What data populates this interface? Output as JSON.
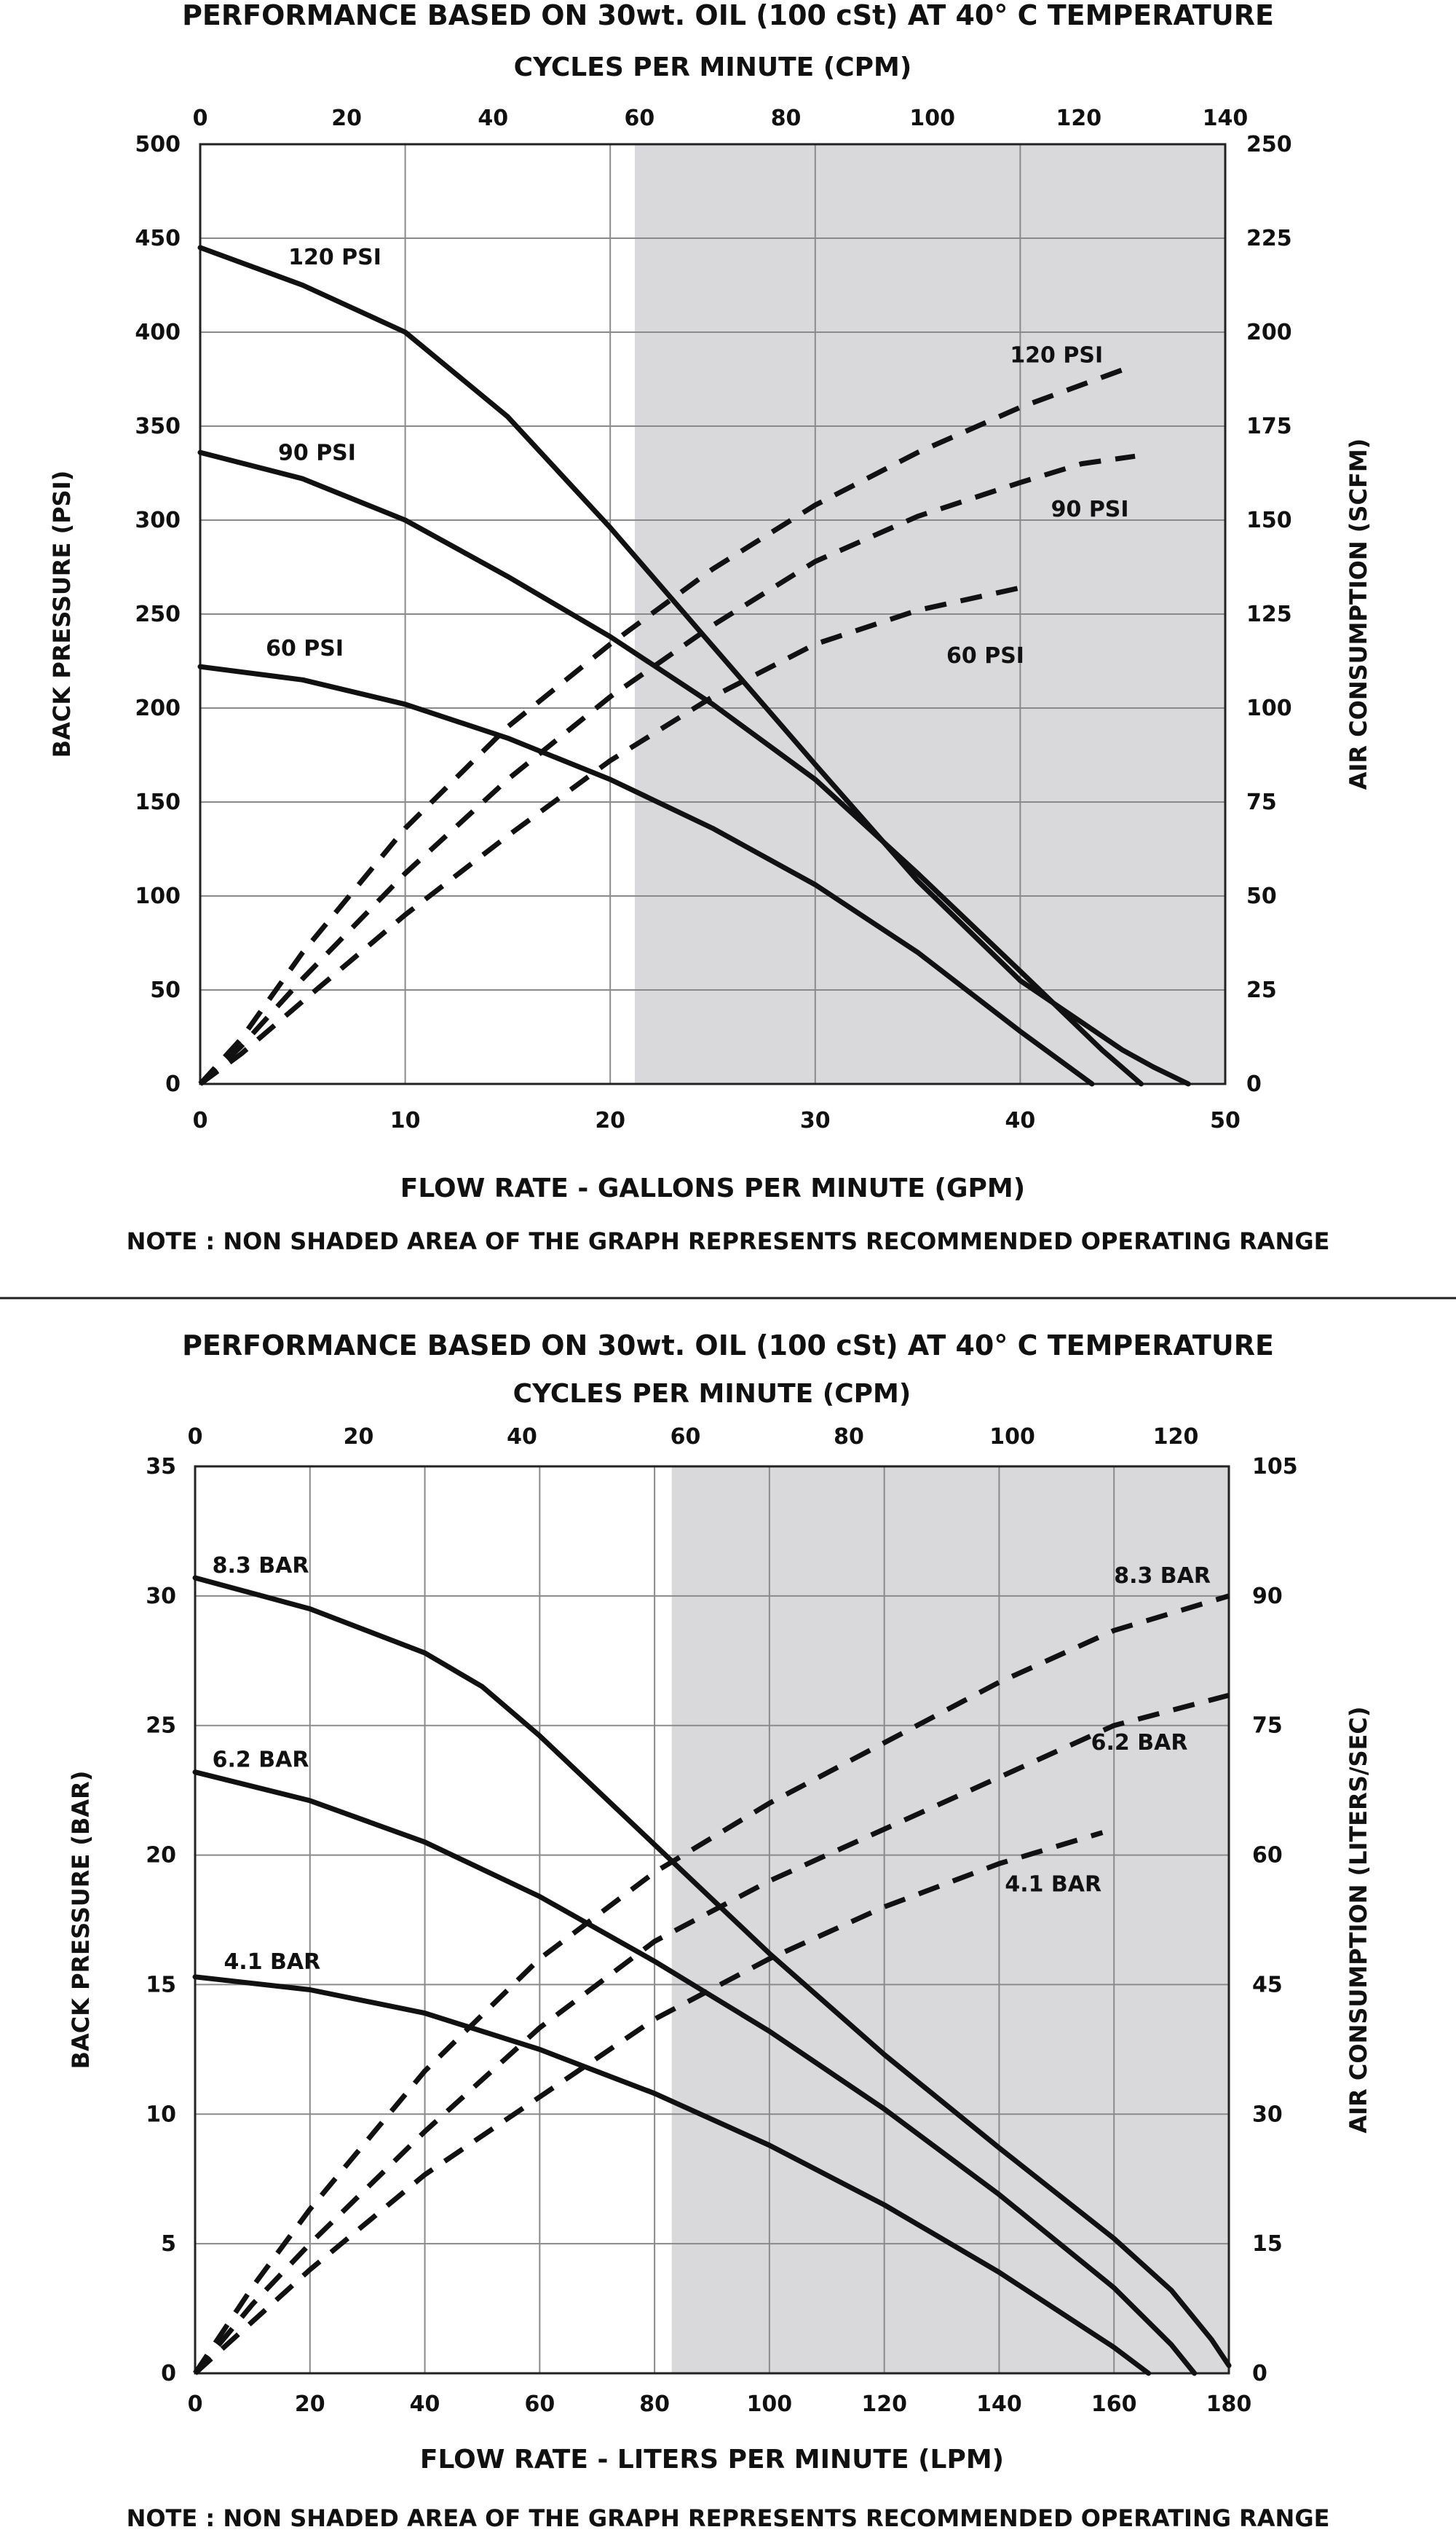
{
  "chart_data": [
    {
      "type": "line",
      "title": "PERFORMANCE  BASED ON 30wt. OIL (100 cSt) AT 40° C TEMPERATURE",
      "top_axis_label": "CYCLES PER MINUTE (CPM)",
      "top_ticks": [
        0,
        20,
        40,
        60,
        80,
        100,
        120,
        140
      ],
      "xlabel": "FLOW RATE - GALLONS PER MINUTE (GPM)",
      "ylabel": "BACK PRESSURE  (PSI)",
      "y2label": "AIR CONSUMPTION  (SCFM)",
      "x_ticks": [
        0,
        10,
        20,
        30,
        40,
        50
      ],
      "y_ticks": [
        0,
        50,
        100,
        150,
        200,
        250,
        300,
        350,
        400,
        450,
        500
      ],
      "y2_ticks": [
        0,
        25,
        50,
        75,
        100,
        125,
        150,
        175,
        200,
        225,
        250
      ],
      "xlim": [
        0,
        50
      ],
      "ylim": [
        0,
        500
      ],
      "y2lim": [
        0,
        250
      ],
      "shaded_from_x": 21.2,
      "note": "NOTE : NON SHADED AREA OF THE GRAPH REPRESENTS RECOMMENDED OPERATING RANGE",
      "series": [
        {
          "name": "120 PSI",
          "style": "solid",
          "axis": "left",
          "label_at": [
            4.3,
            436
          ],
          "x": [
            0,
            5,
            10,
            15,
            20,
            25,
            30,
            35,
            40,
            45,
            46.5,
            48.2
          ],
          "y": [
            445,
            425,
            400,
            355,
            296,
            233,
            170,
            108,
            55,
            18,
            9,
            0
          ]
        },
        {
          "name": "90 PSI",
          "style": "solid",
          "axis": "left",
          "label_at": [
            3.8,
            332
          ],
          "x": [
            0,
            5,
            10,
            15,
            20,
            25,
            30,
            35,
            40,
            44,
            45.9
          ],
          "y": [
            336,
            322,
            300,
            270,
            238,
            202,
            162,
            112,
            60,
            18,
            0
          ]
        },
        {
          "name": "60 PSI",
          "style": "solid",
          "axis": "left",
          "label_at": [
            3.2,
            228
          ],
          "x": [
            0,
            5,
            10,
            15,
            20,
            25,
            30,
            35,
            40,
            43.5
          ],
          "y": [
            222,
            215,
            202,
            184,
            162,
            136,
            106,
            70,
            28,
            0
          ]
        },
        {
          "name": "120 PSI",
          "style": "dashed",
          "axis": "right",
          "label_at": [
            39.5,
            192
          ],
          "x": [
            0,
            2,
            5,
            10,
            15,
            20,
            25,
            30,
            35,
            40,
            45,
            45.6
          ],
          "y": [
            0,
            12,
            35,
            68,
            95,
            117,
            137,
            154,
            168,
            180,
            190,
            191
          ]
        },
        {
          "name": "90 PSI",
          "style": "dashed",
          "axis": "right",
          "label_at": [
            41.5,
            151
          ],
          "x": [
            0,
            2,
            5,
            10,
            15,
            20,
            25,
            30,
            35,
            40,
            43,
            45.6
          ],
          "y": [
            0,
            10,
            28,
            56,
            81,
            103,
            122,
            139,
            151,
            160,
            165,
            167
          ]
        },
        {
          "name": "60 PSI",
          "style": "dashed",
          "axis": "right",
          "label_at": [
            36.4,
            112
          ],
          "x": [
            0,
            2,
            5,
            10,
            15,
            20,
            25,
            30,
            35,
            40
          ],
          "y": [
            0,
            8,
            22,
            45,
            66,
            86,
            103,
            117,
            126,
            132
          ]
        }
      ]
    },
    {
      "type": "line",
      "title": "PERFORMANCE  BASED ON 30wt. OIL (100 cSt) AT 40° C TEMPERATURE",
      "top_axis_label": "CYCLES PER MINUTE (CPM)",
      "top_ticks": [
        0,
        20,
        40,
        60,
        80,
        100,
        120
      ],
      "xlabel": "FLOW RATE - LITERS PER MINUTE (LPM)",
      "ylabel": "BACK PRESSURE  (BAR)",
      "y2label": "AIR CONSUMPTION  (LITERS/SEC)",
      "x_ticks": [
        0,
        20,
        40,
        60,
        80,
        100,
        120,
        140,
        160,
        180
      ],
      "y_ticks": [
        0,
        5,
        10,
        15,
        20,
        25,
        30,
        35
      ],
      "y2_ticks": [
        0,
        15,
        30,
        45,
        60,
        75,
        90,
        105
      ],
      "xlim": [
        0,
        180
      ],
      "ylim": [
        0,
        35
      ],
      "y2lim": [
        0,
        105
      ],
      "shaded_from_x": 83,
      "note": "NOTE : NON SHADED AREA OF THE GRAPH REPRESENTS RECOMMENDED OPERATING RANGE",
      "series": [
        {
          "name": "8.3 BAR",
          "style": "solid",
          "axis": "left",
          "label_at": [
            3,
            30.9
          ],
          "x": [
            0,
            20,
            40,
            50,
            60,
            80,
            100,
            120,
            140,
            160,
            170,
            177,
            180
          ],
          "y": [
            30.7,
            29.5,
            27.8,
            26.5,
            24.6,
            20.4,
            16.2,
            12.3,
            8.7,
            5.2,
            3.2,
            1.3,
            0.3
          ]
        },
        {
          "name": "6.2 BAR",
          "style": "solid",
          "axis": "left",
          "label_at": [
            3,
            23.4
          ],
          "x": [
            0,
            20,
            40,
            60,
            80,
            100,
            120,
            140,
            160,
            170,
            174
          ],
          "y": [
            23.2,
            22.1,
            20.5,
            18.4,
            15.9,
            13.2,
            10.2,
            6.9,
            3.3,
            1.1,
            0
          ]
        },
        {
          "name": "4.1 BAR",
          "style": "solid",
          "axis": "left",
          "label_at": [
            5,
            15.6
          ],
          "x": [
            0,
            20,
            40,
            60,
            80,
            100,
            120,
            140,
            160,
            166
          ],
          "y": [
            15.3,
            14.8,
            13.9,
            12.5,
            10.8,
            8.8,
            6.5,
            3.9,
            1.0,
            0
          ]
        },
        {
          "name": "8.3 BAR",
          "style": "dashed",
          "axis": "right",
          "label_at": [
            160,
            91.5
          ],
          "x": [
            0,
            10,
            20,
            40,
            60,
            80,
            100,
            120,
            140,
            160,
            180
          ],
          "y": [
            0,
            10,
            19,
            35,
            48,
            58,
            66,
            73,
            80,
            86,
            90
          ]
        },
        {
          "name": "6.2 BAR",
          "style": "dashed",
          "axis": "right",
          "label_at": [
            156,
            72.2
          ],
          "x": [
            0,
            10,
            20,
            40,
            60,
            80,
            100,
            120,
            140,
            160,
            180
          ],
          "y": [
            0,
            8,
            15,
            28,
            40,
            50,
            57,
            63,
            69,
            75,
            78.5
          ]
        },
        {
          "name": "4.1 BAR",
          "style": "dashed",
          "axis": "right",
          "label_at": [
            141,
            55.8
          ],
          "x": [
            0,
            10,
            20,
            40,
            60,
            80,
            100,
            120,
            140,
            158
          ],
          "y": [
            0,
            6,
            12,
            23,
            32,
            41,
            48,
            54,
            59,
            62.6
          ]
        }
      ]
    }
  ]
}
